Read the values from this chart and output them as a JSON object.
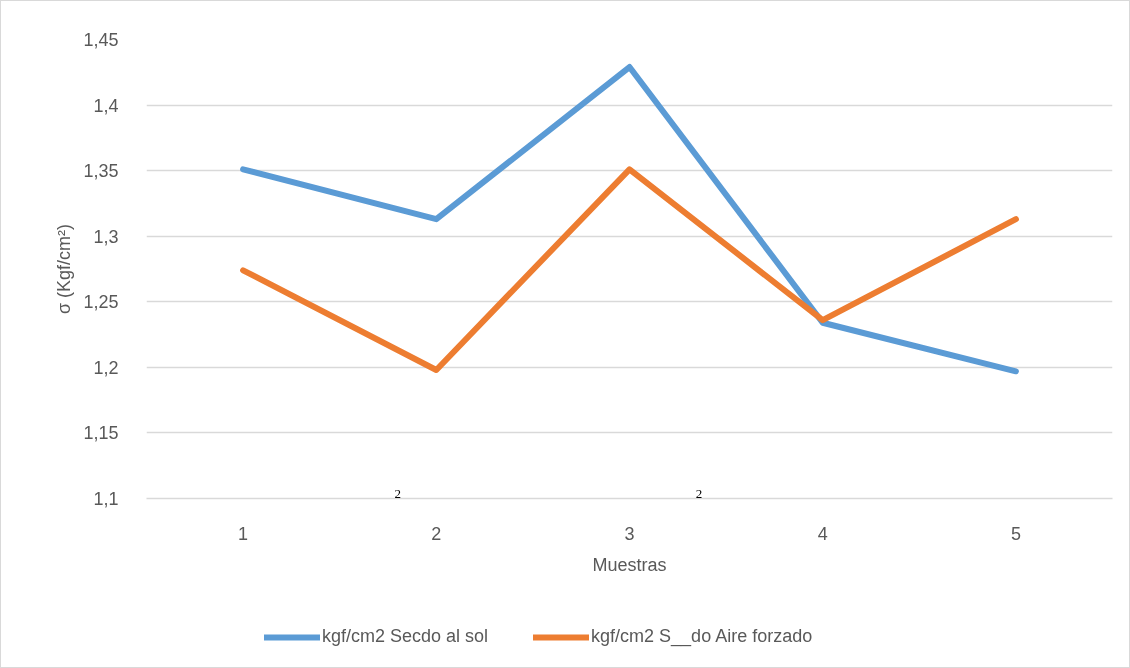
{
  "chart_data": {
    "type": "line",
    "categories": [
      "1",
      "2",
      "3",
      "4",
      "5"
    ],
    "series": [
      {
        "name": "kgf/cm2 Secdo al sol",
        "color": "#5b9bd5",
        "values": [
          1.351,
          1.313,
          1.429,
          1.234,
          1.197
        ]
      },
      {
        "name": "kgf/cm2 S__do Aire forzado",
        "color": "#ed7d31",
        "values": [
          1.274,
          1.198,
          1.351,
          1.236,
          1.313
        ]
      }
    ],
    "xlabel": "Muestras",
    "ylabel": "σ (Kgf/cm²)",
    "ylim": [
      1.1,
      1.45
    ],
    "yticks": [
      {
        "value": 1.1,
        "label": "1,1"
      },
      {
        "value": 1.15,
        "label": "1,15"
      },
      {
        "value": 1.2,
        "label": "1,2"
      },
      {
        "value": 1.25,
        "label": "1,25"
      },
      {
        "value": 1.3,
        "label": "1,3"
      },
      {
        "value": 1.35,
        "label": "1,35"
      },
      {
        "value": 1.4,
        "label": "1,4"
      },
      {
        "value": 1.45,
        "label": "1,45"
      }
    ],
    "annotations": [
      "2",
      "2"
    ],
    "grid": "y",
    "legend": "bottom",
    "marker": "none",
    "line_style": "solid"
  }
}
